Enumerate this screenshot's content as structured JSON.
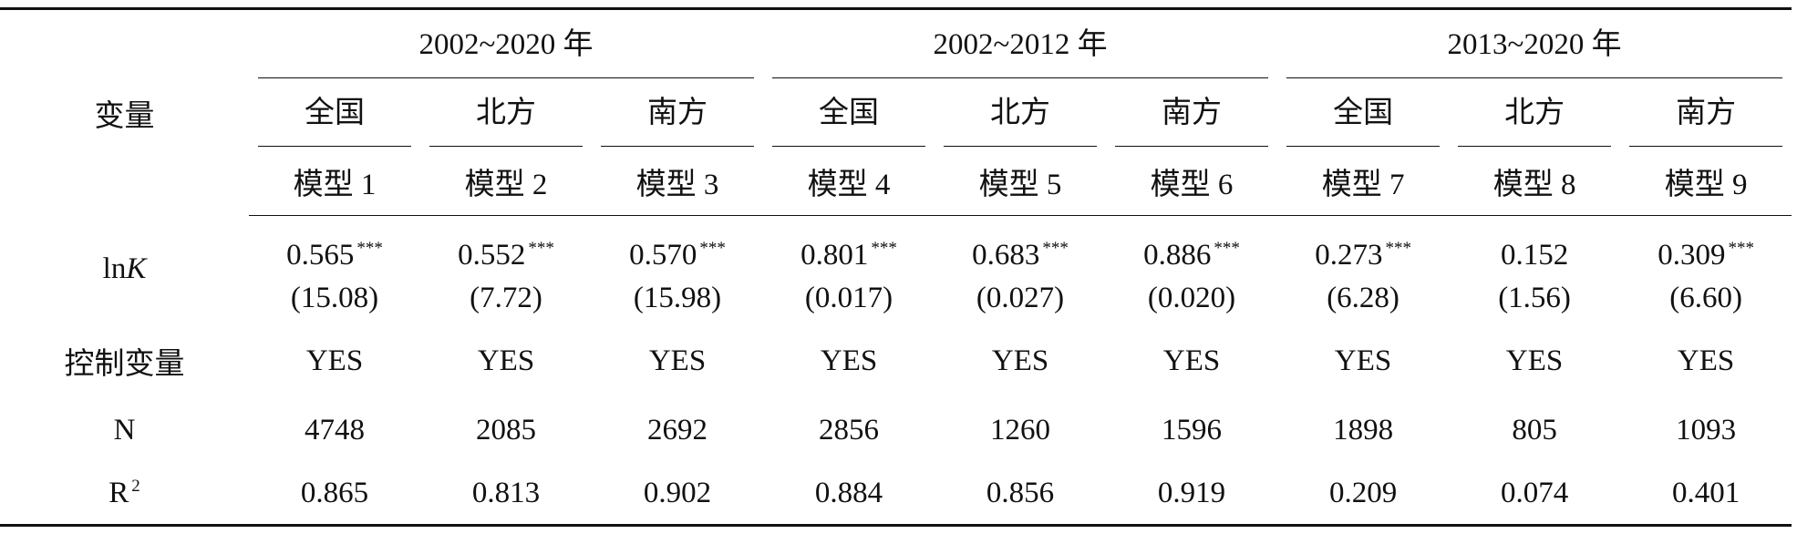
{
  "header": {
    "variable": "变量",
    "periods": [
      {
        "label": "2002~2020 年",
        "regions": [
          "全国",
          "北方",
          "南方"
        ]
      },
      {
        "label": "2002~2012 年",
        "regions": [
          "全国",
          "北方",
          "南方"
        ]
      },
      {
        "label": "2013~2020 年",
        "regions": [
          "全国",
          "北方",
          "南方"
        ]
      }
    ],
    "models": [
      "模型 1",
      "模型 2",
      "模型 3",
      "模型 4",
      "模型 5",
      "模型 6",
      "模型 7",
      "模型 8",
      "模型 9"
    ]
  },
  "lnk": {
    "label": "ln",
    "label_italic": "K",
    "cells": [
      {
        "coef": "0.565",
        "stars": "***",
        "se": "(15.08)"
      },
      {
        "coef": "0.552",
        "stars": "***",
        "se": "(7.72)"
      },
      {
        "coef": "0.570",
        "stars": "***",
        "se": "(15.98)"
      },
      {
        "coef": "0.801",
        "stars": "***",
        "se": "(0.017)"
      },
      {
        "coef": "0.683",
        "stars": "***",
        "se": "(0.027)"
      },
      {
        "coef": "0.886",
        "stars": "***",
        "se": "(0.020)"
      },
      {
        "coef": "0.273",
        "stars": "***",
        "se": "(6.28)"
      },
      {
        "coef": "0.152",
        "se": "(1.56)"
      },
      {
        "coef": "0.309",
        "stars": "***",
        "se": "(6.60)"
      }
    ]
  },
  "controls": {
    "label": "控制变量",
    "values": [
      "YES",
      "YES",
      "YES",
      "YES",
      "YES",
      "YES",
      "YES",
      "YES",
      "YES"
    ]
  },
  "n": {
    "label": "N",
    "values": [
      "4748",
      "2085",
      "2692",
      "2856",
      "1260",
      "1596",
      "1898",
      "805",
      "1093"
    ]
  },
  "r2": {
    "label": "R",
    "label_sup": "2",
    "values": [
      "0.865",
      "0.813",
      "0.902",
      "0.884",
      "0.856",
      "0.919",
      "0.209",
      "0.074",
      "0.401"
    ]
  }
}
